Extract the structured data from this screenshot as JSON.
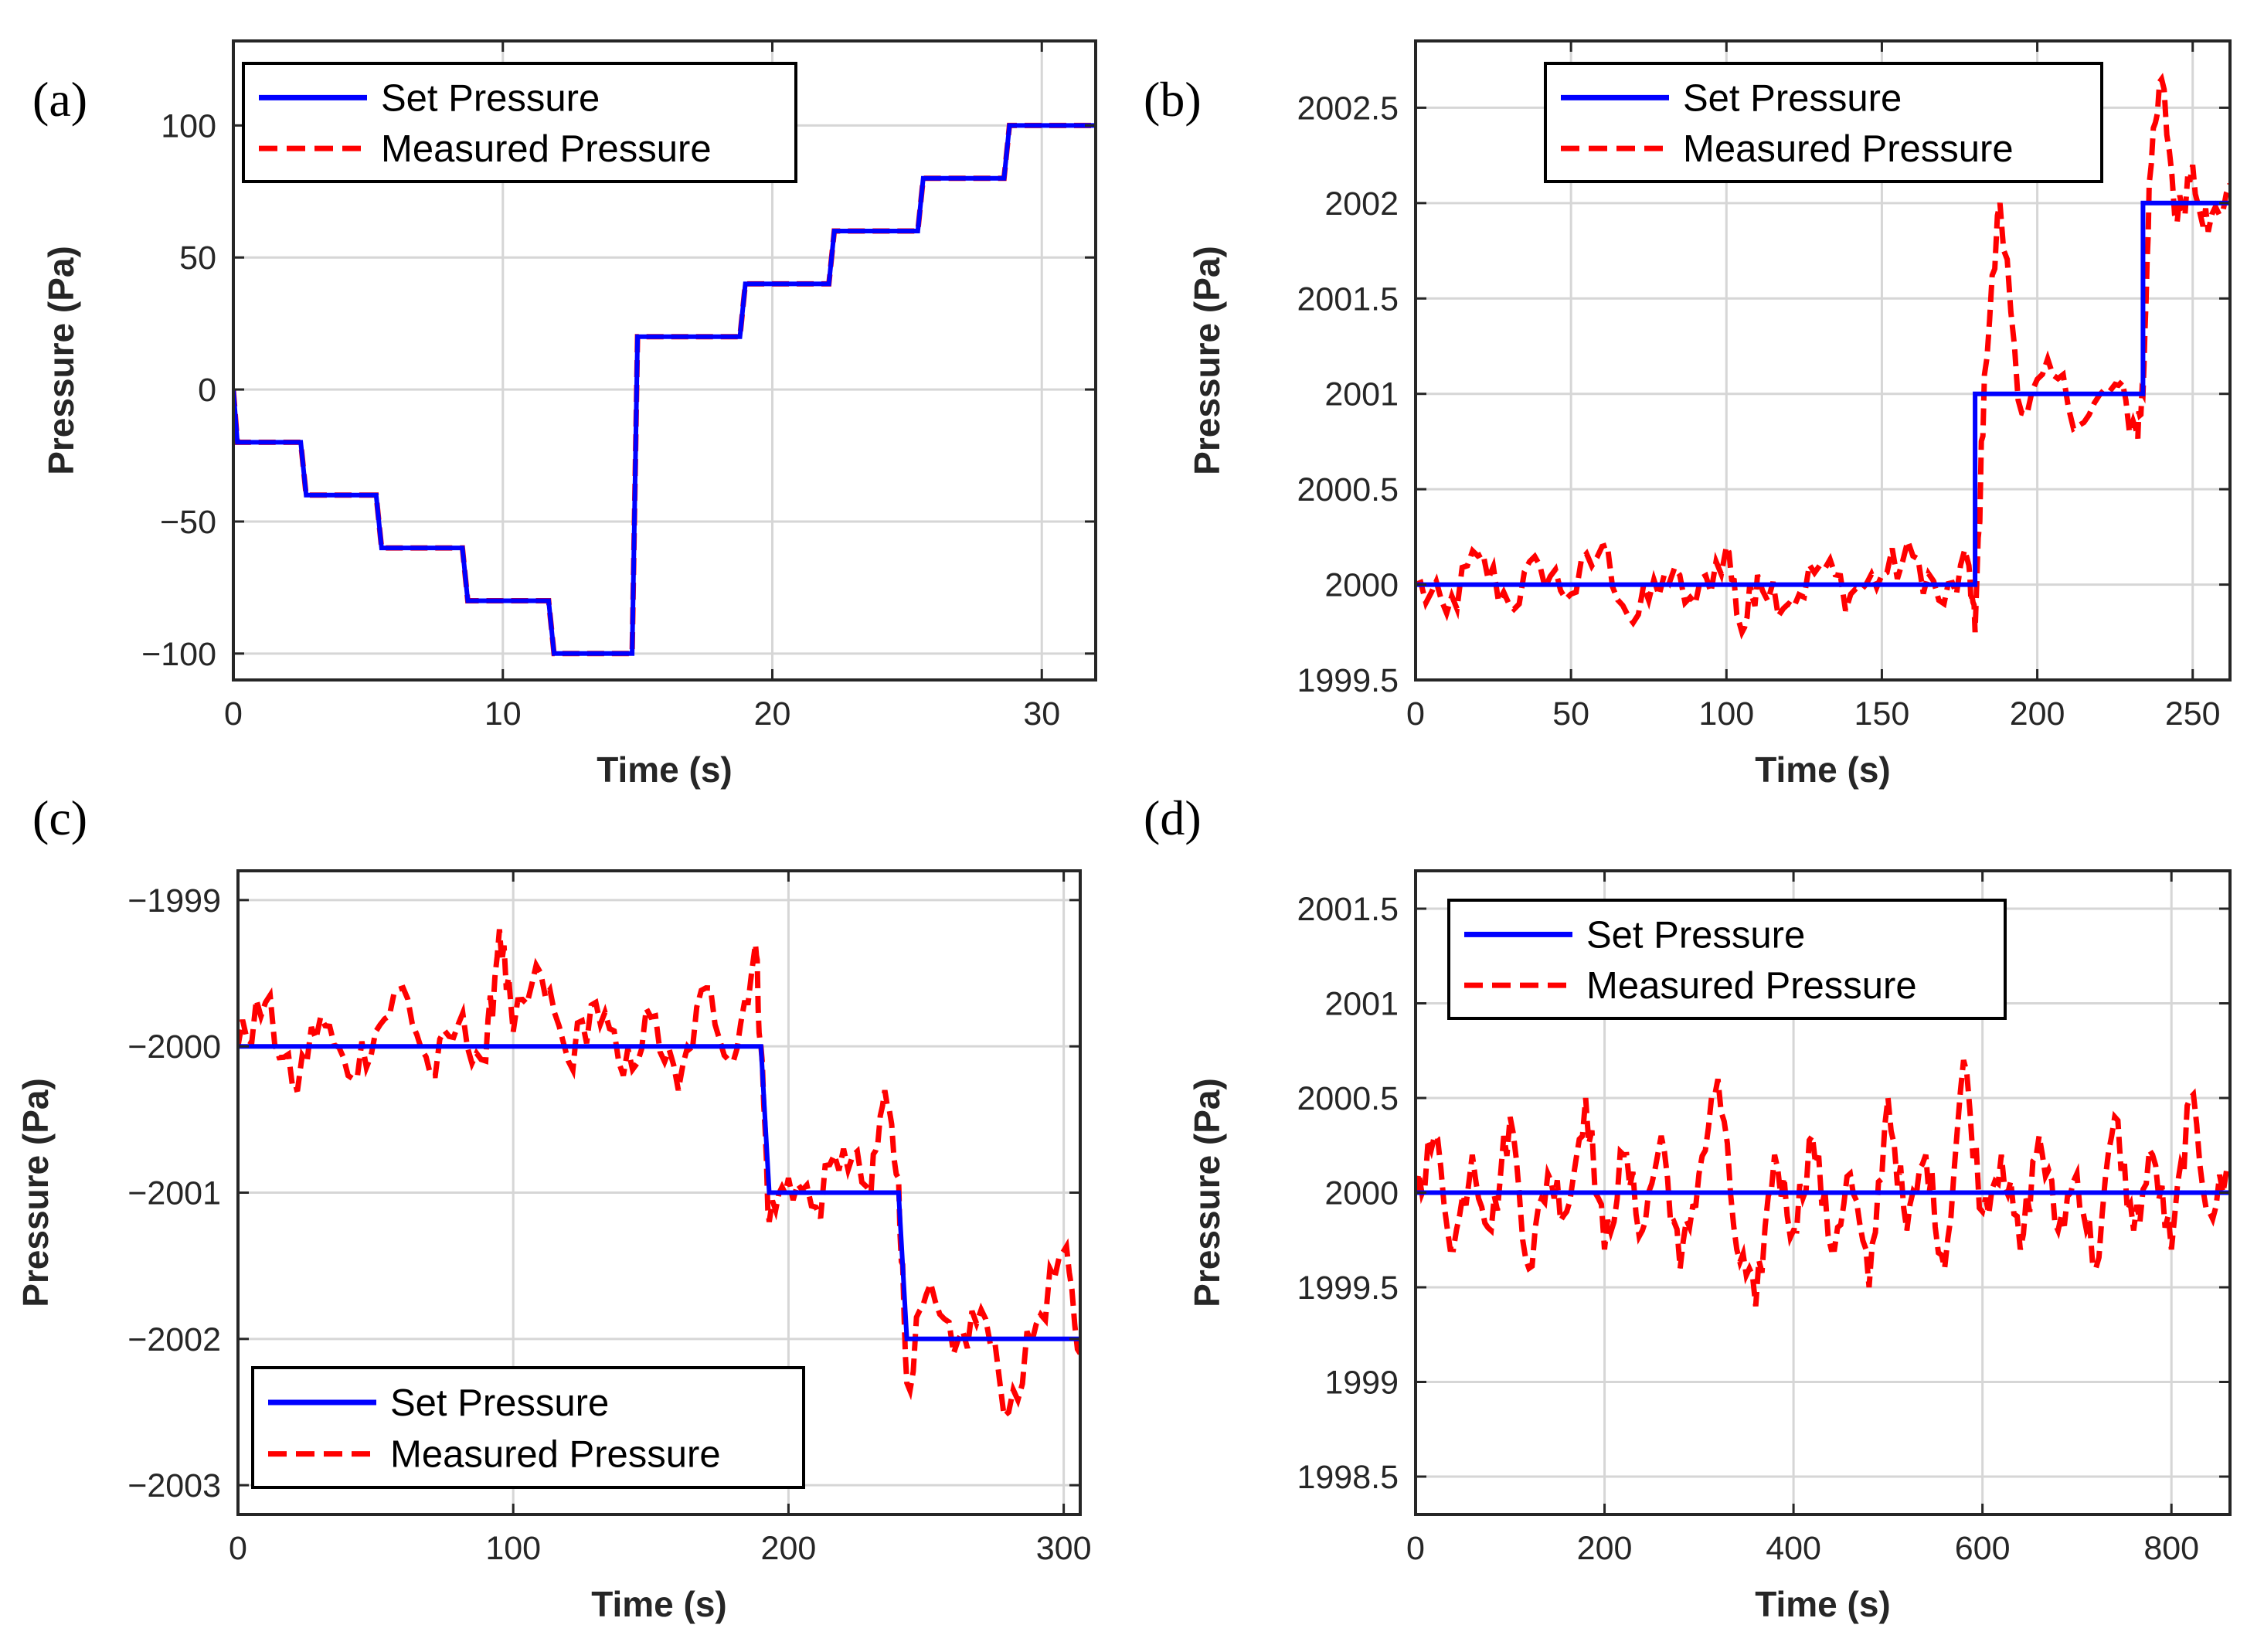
{
  "colors": {
    "set": "#0000ff",
    "measured": "#ff0000",
    "axis": "#262626",
    "grid": "#d6d6d6"
  },
  "chart_data": [
    {
      "panel_label": "(a)",
      "type": "line",
      "xlabel": "Time (s)",
      "ylabel": "Pressure (Pa)",
      "xlim": [
        0,
        32
      ],
      "ylim": [
        -110,
        132
      ],
      "xticks": [
        0,
        10,
        20,
        30
      ],
      "xtick_labels": [
        "0",
        "10",
        "20",
        "30"
      ],
      "yticks": [
        -100,
        -50,
        0,
        50,
        100
      ],
      "ytick_labels": [
        "−100",
        "−50",
        "0",
        "50",
        "100"
      ],
      "grid": true,
      "legend": {
        "location": "top-left",
        "entries": [
          "Set Pressure",
          "Measured Pressure"
        ]
      },
      "series": [
        {
          "name": "Set Pressure",
          "style": "solid",
          "x": [
            0,
            0.15,
            2.5,
            2.7,
            5.3,
            5.5,
            8.5,
            8.7,
            11.7,
            11.9,
            14.8,
            15.0,
            18.8,
            19.0,
            22.1,
            22.3,
            25.4,
            25.6,
            28.6,
            28.8,
            32
          ],
          "y": [
            0,
            -20,
            -20,
            -40,
            -40,
            -60,
            -60,
            -80,
            -80,
            -100,
            -100,
            20,
            20,
            40,
            40,
            60,
            60,
            80,
            80,
            100,
            100
          ]
        },
        {
          "name": "Measured Pressure",
          "style": "dashed",
          "x": [
            0,
            0.15,
            2.5,
            2.7,
            5.3,
            5.5,
            8.5,
            8.7,
            11.7,
            11.9,
            14.8,
            15.0,
            18.8,
            19.0,
            22.1,
            22.3,
            25.4,
            25.6,
            28.6,
            28.8,
            32
          ],
          "y": [
            0,
            -20,
            -20,
            -40,
            -40,
            -60,
            -60,
            -80,
            -80,
            -100,
            -100,
            20,
            20,
            40,
            40,
            60,
            60,
            80,
            80,
            100,
            100
          ]
        }
      ]
    },
    {
      "panel_label": "(b)",
      "type": "line",
      "xlabel": "Time (s)",
      "ylabel": "Pressure (Pa)",
      "xlim": [
        0,
        262
      ],
      "ylim": [
        1999.5,
        2002.85
      ],
      "xticks": [
        0,
        50,
        100,
        150,
        200,
        250
      ],
      "xtick_labels": [
        "0",
        "50",
        "100",
        "150",
        "200",
        "250"
      ],
      "yticks": [
        1999.5,
        2000,
        2000.5,
        2001,
        2001.5,
        2002,
        2002.5
      ],
      "ytick_labels": [
        "1999.5",
        "2000",
        "2000.5",
        "2001",
        "2001.5",
        "2002",
        "2002.5"
      ],
      "grid": true,
      "legend": {
        "location": "top",
        "entries": [
          "Set Pressure",
          "Measured Pressure"
        ]
      },
      "series": [
        {
          "name": "Set Pressure",
          "style": "solid",
          "x": [
            0,
            180,
            180,
            234,
            234,
            262
          ],
          "y": [
            2000,
            2000,
            2001,
            2001,
            2002,
            2002
          ]
        },
        {
          "name": "Measured Pressure",
          "style": "dashed",
          "x": [
            0,
            10,
            20,
            30,
            40,
            50,
            60,
            70,
            80,
            90,
            100,
            105,
            110,
            120,
            130,
            140,
            150,
            160,
            170,
            178,
            180,
            183,
            188,
            195,
            205,
            215,
            225,
            232,
            234,
            236,
            240,
            245,
            250,
            255,
            262
          ],
          "y": [
            2000.0,
            1999.85,
            2000.15,
            1999.9,
            2000.1,
            1999.95,
            2000.2,
            1999.8,
            2000.05,
            1999.9,
            2000.2,
            1999.75,
            2000.05,
            1999.9,
            2000.1,
            1999.95,
            2000.05,
            2000.15,
            1999.9,
            2000.1,
            1999.75,
            2001.1,
            2002.0,
            2000.9,
            2001.1,
            2000.85,
            2001.05,
            2000.8,
            2001.0,
            2002.1,
            2002.65,
            2001.9,
            2002.2,
            2001.85,
            2002.1
          ]
        }
      ]
    },
    {
      "panel_label": "(c)",
      "type": "line",
      "xlabel": "Time (s)",
      "ylabel": "Pressure (Pa)",
      "xlim": [
        0,
        306
      ],
      "ylim": [
        -2003.2,
        -1998.8
      ],
      "xticks": [
        0,
        100,
        200,
        300
      ],
      "xtick_labels": [
        "0",
        "100",
        "200",
        "300"
      ],
      "yticks": [
        -2003,
        -2002,
        -2001,
        -2000,
        -1999
      ],
      "ytick_labels": [
        "−2003",
        "−2002",
        "−2001",
        "−2000",
        "−1999"
      ],
      "grid": true,
      "legend": {
        "location": "bottom-left",
        "entries": [
          "Set Pressure",
          "Measured Pressure"
        ]
      },
      "series": [
        {
          "name": "Set Pressure",
          "style": "solid",
          "x": [
            0,
            190,
            193,
            240,
            243,
            306
          ],
          "y": [
            -2000,
            -2000,
            -2001,
            -2001,
            -2002,
            -2002
          ]
        },
        {
          "name": "Measured Pressure",
          "style": "dashed",
          "x": [
            0,
            10,
            20,
            30,
            40,
            50,
            60,
            70,
            80,
            90,
            95,
            100,
            110,
            120,
            130,
            140,
            150,
            160,
            170,
            180,
            188,
            190,
            193,
            200,
            210,
            220,
            230,
            235,
            240,
            243,
            250,
            260,
            270,
            280,
            290,
            300,
            306
          ],
          "y": [
            -2000.0,
            -1999.7,
            -2000.3,
            -1999.8,
            -2000.2,
            -1999.9,
            -1999.6,
            -2000.2,
            -1999.85,
            -2000.1,
            -1999.2,
            -1999.9,
            -1999.5,
            -2000.1,
            -1999.7,
            -2000.2,
            -1999.8,
            -2000.3,
            -1999.6,
            -2000.1,
            -1999.3,
            -2000.0,
            -2001.2,
            -2000.9,
            -2001.1,
            -2000.7,
            -2001.0,
            -2000.3,
            -2000.9,
            -2002.3,
            -2001.7,
            -2002.1,
            -2001.8,
            -2002.5,
            -2001.9,
            -2001.4,
            -2002.1
          ]
        }
      ]
    },
    {
      "panel_label": "(d)",
      "type": "line",
      "xlabel": "Time (s)",
      "ylabel": "Pressure (Pa)",
      "xlim": [
        0,
        862
      ],
      "ylim": [
        1998.3,
        2001.7
      ],
      "xticks": [
        0,
        200,
        400,
        600,
        800
      ],
      "xtick_labels": [
        "0",
        "200",
        "400",
        "600",
        "800"
      ],
      "yticks": [
        1998.5,
        1999,
        1999.5,
        2000,
        2000.5,
        2001,
        2001.5
      ],
      "ytick_labels": [
        "1998.5",
        "1999",
        "1999.5",
        "2000",
        "2000.5",
        "2001",
        "2001.5"
      ],
      "grid": true,
      "legend": {
        "location": "top-left",
        "entries": [
          "Set Pressure",
          "Measured Pressure"
        ]
      },
      "series": [
        {
          "name": "Set Pressure",
          "style": "solid",
          "x": [
            0,
            862
          ],
          "y": [
            2000,
            2000
          ]
        },
        {
          "name": "Measured Pressure",
          "style": "dashed",
          "x": [
            0,
            20,
            40,
            60,
            80,
            100,
            120,
            140,
            160,
            180,
            200,
            220,
            240,
            260,
            280,
            300,
            320,
            340,
            360,
            380,
            400,
            420,
            440,
            460,
            480,
            500,
            520,
            540,
            560,
            580,
            600,
            620,
            640,
            660,
            680,
            700,
            720,
            740,
            760,
            780,
            800,
            820,
            840,
            862
          ],
          "y": [
            2000.0,
            2000.3,
            1999.7,
            2000.2,
            1999.8,
            2000.4,
            1999.6,
            2000.1,
            1999.9,
            2000.5,
            1999.7,
            2000.2,
            1999.8,
            2000.3,
            1999.6,
            2000.1,
            2000.6,
            1999.7,
            1999.4,
            2000.2,
            1999.8,
            2000.3,
            1999.7,
            2000.1,
            1999.5,
            2000.5,
            1999.8,
            2000.2,
            1999.6,
            2000.7,
            1999.9,
            2000.2,
            1999.7,
            2000.3,
            1999.8,
            2000.1,
            1999.6,
            2000.4,
            1999.8,
            2000.2,
            1999.7,
            2000.5,
            1999.9,
            2000.1
          ]
        }
      ]
    }
  ]
}
